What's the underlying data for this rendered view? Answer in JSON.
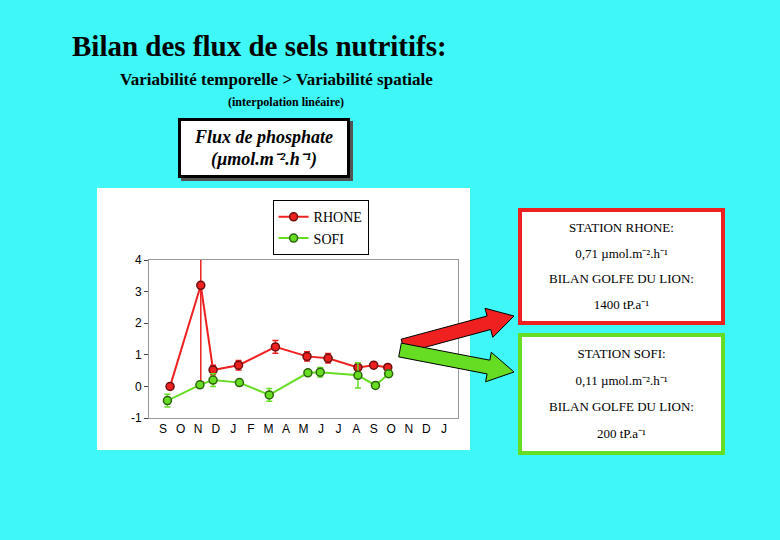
{
  "slide": {
    "title": "Bilan des flux de sels nutritifs:",
    "subtitle": "Variabilité temporelle > Variabilité spatiale",
    "note": "(interpolation linéaire)"
  },
  "chart_data": {
    "type": "line",
    "title": "Flux de phosphate",
    "subtitle": "(µmol.m⁻².h⁻¹)",
    "series": [
      {
        "name": "RHONE",
        "color": "#ee2020",
        "marker": "circle",
        "x": [
          0.4,
          2.15,
          2.85,
          4.3,
          6.4,
          8.2,
          9.4,
          11.1,
          12.0,
          12.8
        ],
        "values": [
          0.0,
          3.2,
          0.52,
          0.67,
          1.25,
          0.95,
          0.89,
          0.6,
          0.67,
          0.6
        ],
        "error_plus": [
          0.05,
          0.85,
          0.15,
          0.15,
          0.2,
          0.15,
          0.15,
          0.1,
          0.05,
          0.05
        ],
        "error_minus": [
          0.05,
          3.05,
          0.15,
          0.15,
          0.2,
          0.15,
          0.15,
          0.1,
          0.05,
          0.05
        ]
      },
      {
        "name": "SOFI",
        "color": "#66dd22",
        "marker": "circle",
        "x": [
          0.25,
          2.1,
          2.85,
          4.35,
          6.05,
          8.25,
          8.95,
          11.1,
          12.1,
          12.85
        ],
        "values": [
          -0.45,
          0.05,
          0.2,
          0.12,
          -0.27,
          0.43,
          0.45,
          0.35,
          0.03,
          0.4
        ],
        "error_plus": [
          0.2,
          0.05,
          0.2,
          0.05,
          0.2,
          0.05,
          0.15,
          0.4,
          0.05,
          0.1
        ],
        "error_minus": [
          0.2,
          0.05,
          0.2,
          0.05,
          0.2,
          0.05,
          0.15,
          0.4,
          0.05,
          0.1
        ]
      }
    ],
    "xlim": [
      -0.8,
      16.8
    ],
    "xticks": [
      {
        "value": 0,
        "label": "S"
      },
      {
        "value": 1,
        "label": "O"
      },
      {
        "value": 2,
        "label": "N"
      },
      {
        "value": 3,
        "label": "D"
      },
      {
        "value": 4,
        "label": "J"
      },
      {
        "value": 5,
        "label": "F"
      },
      {
        "value": 6,
        "label": "M"
      },
      {
        "value": 7,
        "label": "A"
      },
      {
        "value": 8,
        "label": "M"
      },
      {
        "value": 9,
        "label": "J"
      },
      {
        "value": 10,
        "label": "J"
      },
      {
        "value": 11,
        "label": "A"
      },
      {
        "value": 12,
        "label": "S"
      },
      {
        "value": 13,
        "label": "O"
      },
      {
        "value": 14,
        "label": "N"
      },
      {
        "value": 15,
        "label": "D"
      },
      {
        "value": 16,
        "label": "J"
      }
    ],
    "ylim": [
      -1,
      4
    ],
    "yticks": [
      -1,
      0,
      1,
      2,
      3,
      4
    ],
    "grid": false,
    "legend": "top"
  },
  "stations": [
    {
      "name": "STATION RHONE:",
      "flux": "0,71 µmol.m⁻².h⁻¹",
      "bilan_label": "BILAN GOLFE DU LION:",
      "bilan": "1400 tP.a⁻¹"
    },
    {
      "name": "STATION SOFI:",
      "flux": "0,11 µmol.m⁻².h⁻¹",
      "bilan_label": "BILAN GOLFE DU LION:",
      "bilan": "200 tP.a⁻¹"
    }
  ]
}
